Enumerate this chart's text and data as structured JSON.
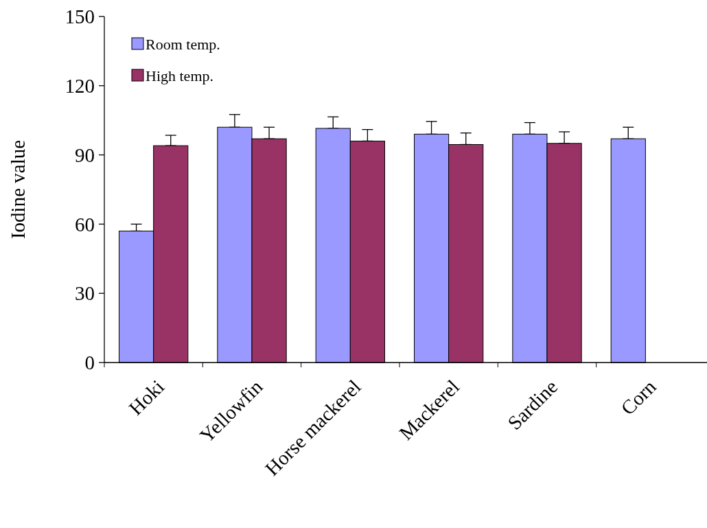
{
  "chart_data": {
    "type": "bar",
    "ylabel": "Iodine value",
    "categories": [
      "Hoki",
      "Yellowfin",
      "Horse mackerel",
      "Mackerel",
      "Sardine",
      "Corn"
    ],
    "series": [
      {
        "name": "Room temp.",
        "color": "#9999ff",
        "values": [
          57,
          102,
          101.5,
          99,
          99,
          97
        ],
        "errors": [
          [
            57,
            60
          ],
          [
            102,
            107.5
          ],
          [
            101.5,
            106.5
          ],
          [
            99,
            104.5
          ],
          [
            99,
            104
          ],
          [
            97,
            102
          ]
        ]
      },
      {
        "name": "High temp.",
        "color": "#993366",
        "values": [
          94,
          97,
          96,
          94.5,
          95,
          null
        ],
        "errors": [
          [
            94,
            98.5
          ],
          [
            97,
            102
          ],
          [
            96,
            101
          ],
          [
            94.5,
            99.5
          ],
          [
            95,
            100
          ],
          null
        ]
      }
    ],
    "ylim": [
      0,
      150
    ],
    "yticks": [
      0,
      30,
      60,
      90,
      120,
      150
    ],
    "grid": false,
    "legend": "top left"
  }
}
